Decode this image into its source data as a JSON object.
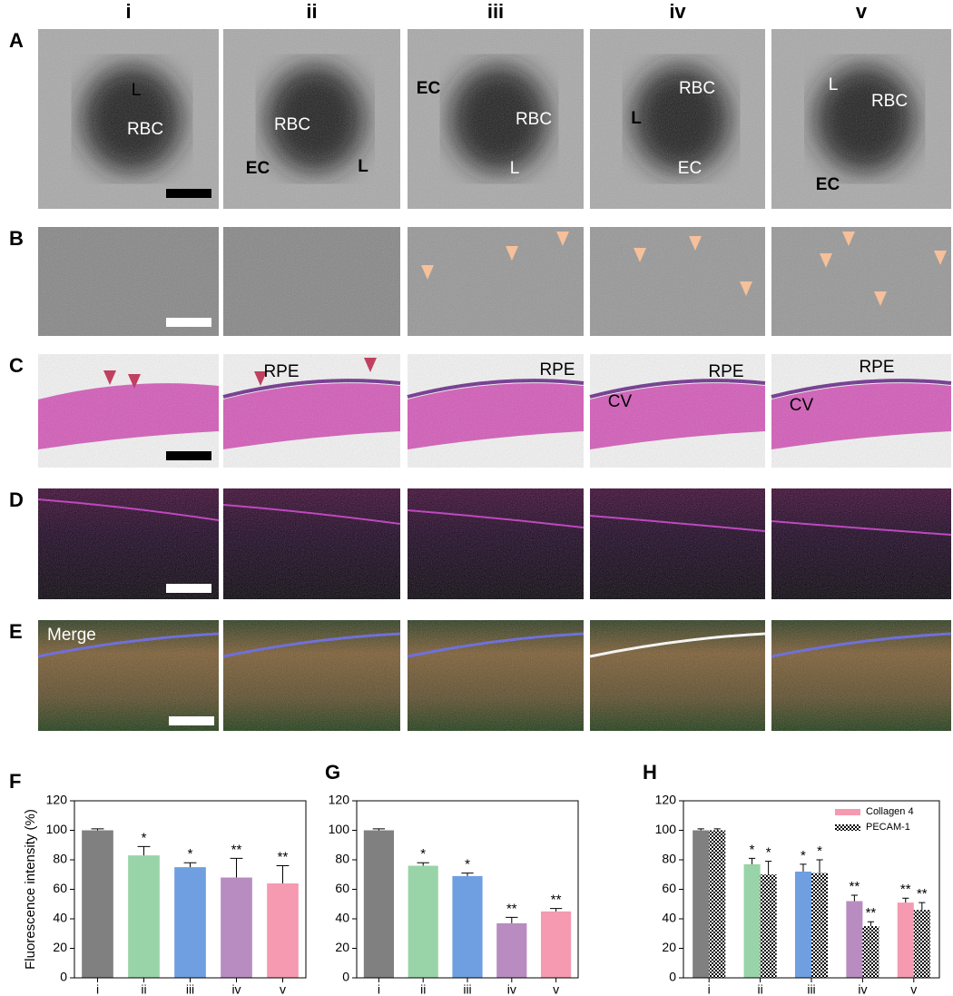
{
  "columns": [
    "i",
    "ii",
    "iii",
    "iv",
    "v"
  ],
  "rows": [
    "A",
    "B",
    "C",
    "D",
    "E"
  ],
  "annotations": {
    "A": [
      [
        "L",
        "RBC"
      ],
      [
        "RBC",
        "EC",
        "L"
      ],
      [
        "EC",
        "RBC",
        "L"
      ],
      [
        "RBC",
        "L",
        "EC"
      ],
      [
        "L",
        "RBC",
        "EC"
      ]
    ],
    "C": [
      [
        "RPE"
      ],
      [
        "RPE"
      ],
      [
        "RPE",
        "CV"
      ],
      [
        "RPE",
        "CV"
      ]
    ],
    "E": "Merge"
  },
  "chart_data": [
    {
      "panel": "F",
      "type": "bar",
      "ylabel": "Fluorescence intensity (%)",
      "categories": [
        "i",
        "ii",
        "iii",
        "iv",
        "v"
      ],
      "ylim": [
        0,
        120
      ],
      "yticks": [
        0,
        20,
        40,
        60,
        80,
        100,
        120
      ],
      "series": [
        {
          "colors": [
            "#808080",
            "#98d4a8",
            "#6f9fe0",
            "#b88cc0",
            "#f59ab0"
          ],
          "values": [
            100,
            83,
            75,
            68,
            64
          ],
          "errors": [
            1,
            6,
            3,
            13,
            12
          ],
          "annotations": [
            null,
            "*",
            "*",
            "**",
            "**"
          ]
        }
      ]
    },
    {
      "panel": "G",
      "type": "bar",
      "categories": [
        "i",
        "ii",
        "iii",
        "iv",
        "v"
      ],
      "ylim": [
        0,
        120
      ],
      "yticks": [
        0,
        20,
        40,
        60,
        80,
        100,
        120
      ],
      "series": [
        {
          "colors": [
            "#808080",
            "#98d4a8",
            "#6f9fe0",
            "#b88cc0",
            "#f59ab0"
          ],
          "values": [
            100,
            76,
            69,
            37,
            45
          ],
          "errors": [
            1,
            2,
            2,
            4,
            2
          ],
          "annotations": [
            null,
            "*",
            "*",
            "**",
            "**"
          ]
        }
      ]
    },
    {
      "panel": "H",
      "type": "bar",
      "legend": "upper right",
      "categories": [
        "i",
        "ii",
        "iii",
        "iv",
        "v"
      ],
      "ylim": [
        0,
        120
      ],
      "yticks": [
        0,
        20,
        40,
        60,
        80,
        100,
        120
      ],
      "series": [
        {
          "name": "Collagen 4",
          "color": "#f59ab0",
          "colors": [
            "#808080",
            "#98d4a8",
            "#6f9fe0",
            "#b88cc0",
            "#f59ab0"
          ],
          "values": [
            100,
            77,
            72,
            52,
            51
          ],
          "errors": [
            1,
            4,
            5,
            4,
            3
          ],
          "annotations": [
            null,
            "*",
            "*",
            "**",
            "**"
          ]
        },
        {
          "name": "PECAM-1",
          "color": "#f59ab0",
          "hatch": true,
          "colors": [
            "#808080",
            "#98d4a8",
            "#6f9fe0",
            "#b88cc0",
            "#f59ab0"
          ],
          "values": [
            100,
            70,
            71,
            35,
            46
          ],
          "errors": [
            1,
            9,
            9,
            3,
            5
          ],
          "annotations": [
            null,
            "*",
            "*",
            "**",
            "**"
          ]
        }
      ]
    }
  ]
}
